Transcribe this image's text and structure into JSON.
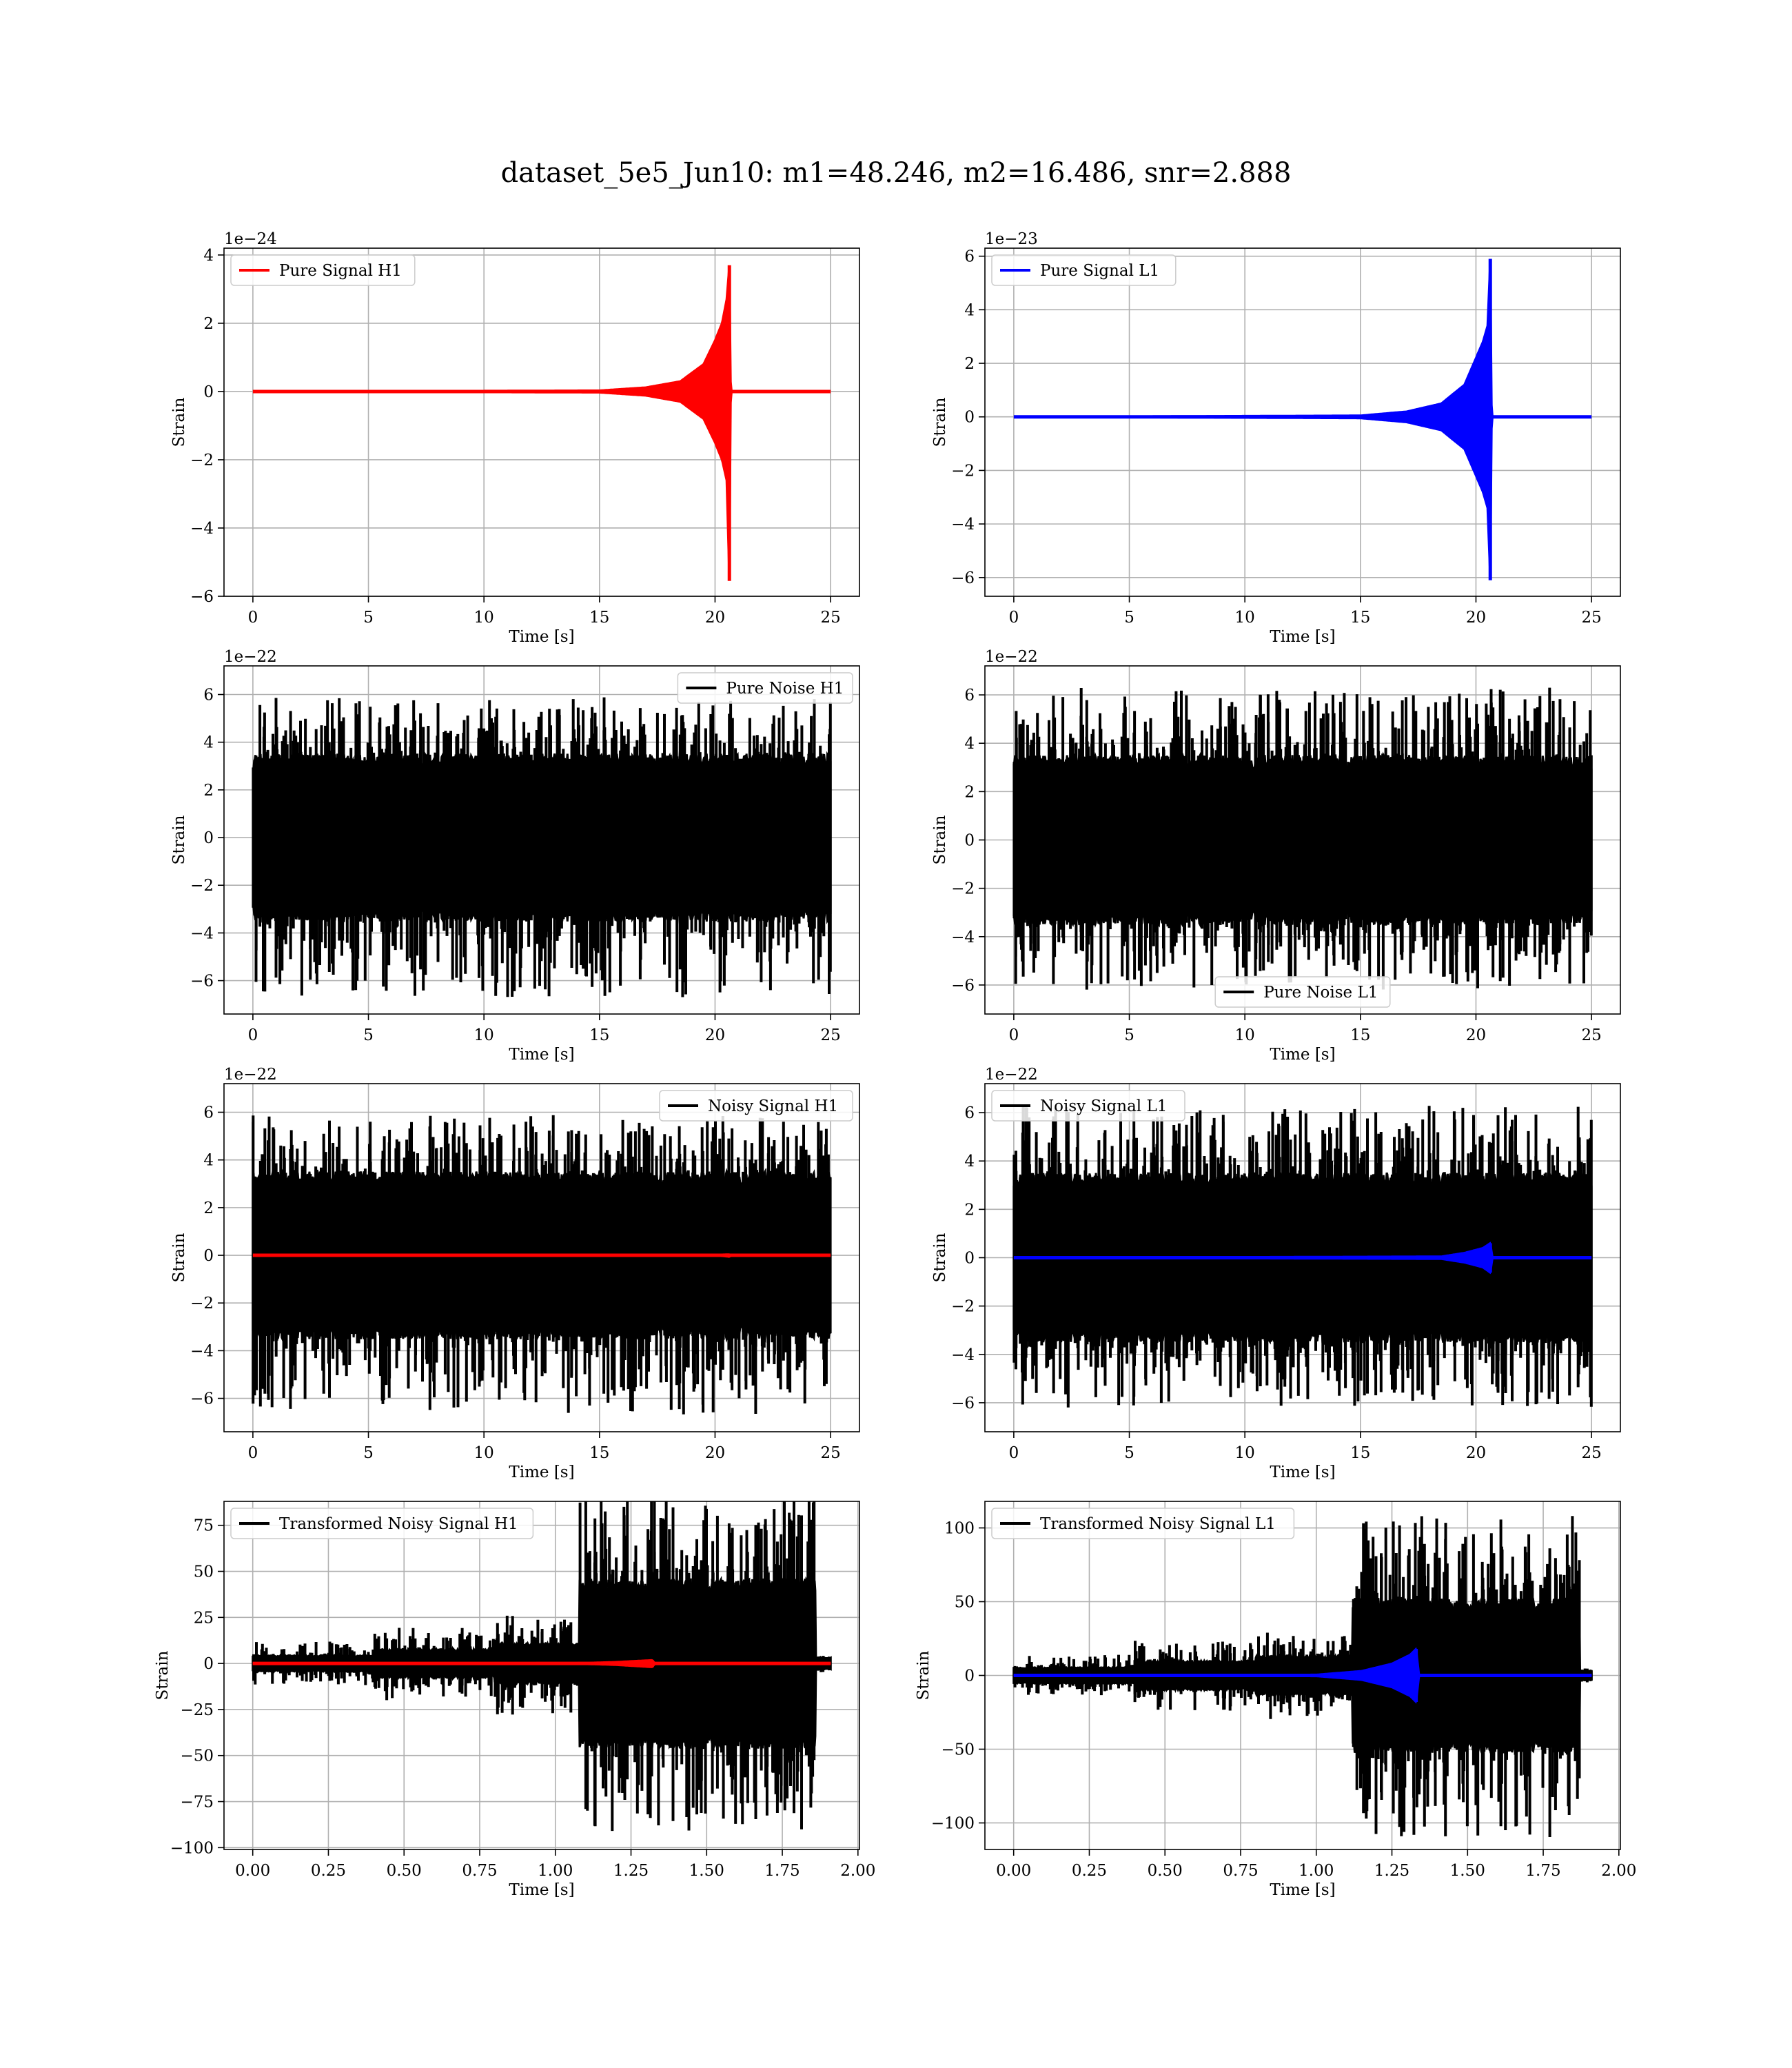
{
  "figure": {
    "title": "dataset_5e5_Jun10: m1=48.246, m2=16.486, snr=2.888"
  },
  "chart_data": [
    {
      "type": "line",
      "id": "pure-signal-h1",
      "title": "",
      "xlabel": "Time [s]",
      "ylabel": "Strain",
      "xlim": [
        -1.25,
        26.25
      ],
      "ylim": [
        -6,
        4.2
      ],
      "offset_text": "1e−24",
      "xticks": [
        0,
        5,
        10,
        15,
        20,
        25
      ],
      "yticks": [
        -6,
        -4,
        -2,
        0,
        2,
        4
      ],
      "xtick_labels": [
        "0",
        "5",
        "10",
        "15",
        "20",
        "25"
      ],
      "ytick_labels": [
        "−6",
        "−4",
        "−2",
        "0",
        "2",
        "4"
      ],
      "legend": {
        "position": "upper left",
        "entries": [
          {
            "label": "Pure Signal H1",
            "color": "#ff0000"
          }
        ]
      },
      "grid": true,
      "series": [
        {
          "name": "Pure Signal H1",
          "kind": "chirp",
          "color": "#ff0000",
          "x": [
            0,
            15,
            17,
            18.5,
            19.5,
            20,
            20.3,
            20.5,
            20.62,
            20.68,
            20.72,
            25
          ],
          "upper": [
            0,
            0.03,
            0.12,
            0.3,
            0.8,
            1.5,
            2.0,
            2.7,
            3.7,
            0.2,
            0,
            0
          ],
          "lower": [
            0,
            -0.03,
            -0.12,
            -0.3,
            -0.8,
            -1.5,
            -2.0,
            -2.6,
            -5.55,
            -0.2,
            0,
            0
          ]
        }
      ]
    },
    {
      "type": "line",
      "id": "pure-signal-l1",
      "title": "",
      "xlabel": "Time [s]",
      "ylabel": "Strain",
      "xlim": [
        -1.25,
        26.25
      ],
      "ylim": [
        -6.7,
        6.3
      ],
      "offset_text": "1e−23",
      "xticks": [
        0,
        5,
        10,
        15,
        20,
        25
      ],
      "yticks": [
        -6,
        -4,
        -2,
        0,
        2,
        4,
        6
      ],
      "xtick_labels": [
        "0",
        "5",
        "10",
        "15",
        "20",
        "25"
      ],
      "ytick_labels": [
        "−6",
        "−4",
        "−2",
        "0",
        "2",
        "4",
        "6"
      ],
      "legend": {
        "position": "upper left",
        "entries": [
          {
            "label": "Pure Signal L1",
            "color": "#0000ff"
          }
        ]
      },
      "grid": true,
      "series": [
        {
          "name": "Pure Signal L1",
          "kind": "chirp",
          "color": "#0000ff",
          "x": [
            0,
            15,
            17,
            18.5,
            19.5,
            20,
            20.3,
            20.5,
            20.62,
            20.68,
            20.72,
            25
          ],
          "upper": [
            0,
            0.05,
            0.2,
            0.5,
            1.2,
            2.2,
            2.8,
            3.4,
            5.9,
            0.3,
            0,
            0
          ],
          "lower": [
            0,
            -0.05,
            -0.2,
            -0.5,
            -1.2,
            -2.2,
            -2.8,
            -3.4,
            -6.1,
            -0.3,
            0,
            0
          ]
        }
      ]
    },
    {
      "type": "line",
      "id": "pure-noise-h1",
      "title": "",
      "xlabel": "Time [s]",
      "ylabel": "Strain",
      "xlim": [
        -1.25,
        26.25
      ],
      "ylim": [
        -7.4,
        7.2
      ],
      "offset_text": "1e−22",
      "xticks": [
        0,
        5,
        10,
        15,
        20,
        25
      ],
      "yticks": [
        -6,
        -4,
        -2,
        0,
        2,
        4,
        6
      ],
      "xtick_labels": [
        "0",
        "5",
        "10",
        "15",
        "20",
        "25"
      ],
      "ytick_labels": [
        "−6",
        "−4",
        "−2",
        "0",
        "2",
        "4",
        "6"
      ],
      "legend": {
        "position": "upper right",
        "entries": [
          {
            "label": "Pure Noise H1",
            "color": "#000000"
          }
        ]
      },
      "grid": true,
      "series": [
        {
          "name": "Pure Noise H1",
          "kind": "noise",
          "color": "#000000",
          "x_range": [
            0,
            25
          ],
          "core": 3.2,
          "peak_max": 5.9,
          "peak_min": -6.7
        }
      ]
    },
    {
      "type": "line",
      "id": "pure-noise-l1",
      "title": "",
      "xlabel": "Time [s]",
      "ylabel": "Strain",
      "xlim": [
        -1.25,
        26.25
      ],
      "ylim": [
        -7.2,
        7.2
      ],
      "offset_text": "1e−22",
      "xticks": [
        0,
        5,
        10,
        15,
        20,
        25
      ],
      "yticks": [
        -6,
        -4,
        -2,
        0,
        2,
        4,
        6
      ],
      "xtick_labels": [
        "0",
        "5",
        "10",
        "15",
        "20",
        "25"
      ],
      "ytick_labels": [
        "−6",
        "−4",
        "−2",
        "0",
        "2",
        "4",
        "6"
      ],
      "legend": {
        "position": "lower center",
        "entries": [
          {
            "label": "Pure Noise L1",
            "color": "#000000"
          }
        ]
      },
      "grid": true,
      "series": [
        {
          "name": "Pure Noise L1",
          "kind": "noise",
          "color": "#000000",
          "x_range": [
            0,
            25
          ],
          "core": 3.2,
          "peak_max": 6.3,
          "peak_min": -6.2
        }
      ]
    },
    {
      "type": "line",
      "id": "noisy-signal-h1",
      "title": "",
      "xlabel": "Time [s]",
      "ylabel": "Strain",
      "xlim": [
        -1.25,
        26.25
      ],
      "ylim": [
        -7.4,
        7.2
      ],
      "offset_text": "1e−22",
      "xticks": [
        0,
        5,
        10,
        15,
        20,
        25
      ],
      "yticks": [
        -6,
        -4,
        -2,
        0,
        2,
        4,
        6
      ],
      "xtick_labels": [
        "0",
        "5",
        "10",
        "15",
        "20",
        "25"
      ],
      "ytick_labels": [
        "−6",
        "−4",
        "−2",
        "0",
        "2",
        "4",
        "6"
      ],
      "legend": {
        "position": "upper right",
        "entries": [
          {
            "label": "Noisy Signal H1",
            "color": "#000000"
          }
        ]
      },
      "grid": true,
      "series": [
        {
          "name": "Noisy Signal H1",
          "kind": "noise",
          "color": "#000000",
          "x_range": [
            0,
            25
          ],
          "core": 3.2,
          "peak_max": 5.9,
          "peak_min": -6.7
        },
        {
          "kind": "chirp",
          "color": "#ff0000",
          "x": [
            0,
            19.5,
            20.3,
            20.62,
            20.72,
            25
          ],
          "upper": [
            0,
            0.01,
            0.03,
            0.04,
            0,
            0
          ],
          "lower": [
            0,
            -0.01,
            -0.03,
            -0.06,
            0,
            0
          ]
        }
      ]
    },
    {
      "type": "line",
      "id": "noisy-signal-l1",
      "title": "",
      "xlabel": "Time [s]",
      "ylabel": "Strain",
      "xlim": [
        -1.25,
        26.25
      ],
      "ylim": [
        -7.2,
        7.2
      ],
      "offset_text": "1e−22",
      "xticks": [
        0,
        5,
        10,
        15,
        20,
        25
      ],
      "yticks": [
        -6,
        -4,
        -2,
        0,
        2,
        4,
        6
      ],
      "xtick_labels": [
        "0",
        "5",
        "10",
        "15",
        "20",
        "25"
      ],
      "ytick_labels": [
        "−6",
        "−4",
        "−2",
        "0",
        "2",
        "4",
        "6"
      ],
      "legend": {
        "position": "upper left",
        "entries": [
          {
            "label": "Noisy Signal L1",
            "color": "#000000"
          }
        ]
      },
      "grid": true,
      "series": [
        {
          "name": "Noisy Signal L1",
          "kind": "noise",
          "color": "#000000",
          "x_range": [
            0,
            25
          ],
          "core": 3.2,
          "peak_max": 6.3,
          "peak_min": -6.2
        },
        {
          "kind": "chirp",
          "color": "#0000ff",
          "x": [
            0,
            18.5,
            19.5,
            20.3,
            20.62,
            20.72,
            25
          ],
          "upper": [
            0,
            0.05,
            0.2,
            0.4,
            0.6,
            0,
            0
          ],
          "lower": [
            0,
            -0.05,
            -0.2,
            -0.4,
            -0.62,
            0,
            0
          ]
        }
      ]
    },
    {
      "type": "line",
      "id": "transformed-noisy-signal-h1",
      "title": "",
      "xlabel": "Time [s]",
      "ylabel": "Strain",
      "xlim": [
        -0.095,
        2.005
      ],
      "ylim": [
        -101,
        88
      ],
      "offset_text": "",
      "xticks": [
        0,
        0.25,
        0.5,
        0.75,
        1.0,
        1.25,
        1.5,
        1.75,
        2.0
      ],
      "yticks": [
        -100,
        -75,
        -50,
        -25,
        0,
        25,
        50,
        75
      ],
      "xtick_labels": [
        "0.00",
        "0.25",
        "0.50",
        "0.75",
        "1.00",
        "1.25",
        "1.50",
        "1.75",
        "2.00"
      ],
      "ytick_labels": [
        "−100",
        "−75",
        "−50",
        "−25",
        "0",
        "25",
        "50",
        "75"
      ],
      "legend": {
        "position": "upper left",
        "entries": [
          {
            "label": "Transformed Noisy Signal H1",
            "color": "#000000"
          }
        ]
      },
      "grid": true,
      "series": [
        {
          "name": "Transformed Noisy Signal H1",
          "kind": "piecewise-noise",
          "color": "#000000",
          "x_range": [
            0,
            1.91
          ],
          "segments": [
            {
              "x0": 0.0,
              "x1": 0.4,
              "core": 4,
              "peak": 12
            },
            {
              "x0": 0.4,
              "x1": 0.8,
              "core": 7,
              "peak": 20
            },
            {
              "x0": 0.8,
              "x1": 1.08,
              "core": 10,
              "peak": 28
            },
            {
              "x0": 1.08,
              "x1": 1.86,
              "core": 42,
              "peak": 92
            },
            {
              "x0": 1.86,
              "x1": 1.91,
              "core": 3,
              "peak": 5
            }
          ]
        },
        {
          "kind": "chirp",
          "color": "#ff0000",
          "x": [
            0,
            1.1,
            1.2,
            1.32,
            1.33,
            1.91
          ],
          "upper": [
            0,
            0.3,
            0.8,
            1.8,
            0,
            0
          ],
          "lower": [
            0,
            -0.3,
            -0.8,
            -2,
            0,
            0
          ]
        }
      ]
    },
    {
      "type": "line",
      "id": "transformed-noisy-signal-l1",
      "title": "",
      "xlabel": "Time [s]",
      "ylabel": "Strain",
      "xlim": [
        -0.095,
        2.005
      ],
      "ylim": [
        -118,
        118
      ],
      "offset_text": "",
      "xticks": [
        0,
        0.25,
        0.5,
        0.75,
        1.0,
        1.25,
        1.5,
        1.75,
        2.0
      ],
      "yticks": [
        -100,
        -50,
        0,
        50,
        100
      ],
      "xtick_labels": [
        "0.00",
        "0.25",
        "0.50",
        "0.75",
        "1.00",
        "1.25",
        "1.50",
        "1.75",
        "2.00"
      ],
      "ytick_labels": [
        "−100",
        "−50",
        "0",
        "50",
        "100"
      ],
      "legend": {
        "position": "upper left",
        "entries": [
          {
            "label": "Transformed Noisy Signal L1",
            "color": "#000000"
          }
        ]
      },
      "grid": true,
      "series": [
        {
          "name": "Transformed Noisy Signal L1",
          "kind": "piecewise-noise",
          "color": "#000000",
          "x_range": [
            0,
            1.91
          ],
          "segments": [
            {
              "x0": 0.0,
              "x1": 0.4,
              "core": 5,
              "peak": 14
            },
            {
              "x0": 0.4,
              "x1": 0.8,
              "core": 9,
              "peak": 24
            },
            {
              "x0": 0.8,
              "x1": 1.12,
              "core": 12,
              "peak": 30
            },
            {
              "x0": 1.12,
              "x1": 1.87,
              "core": 48,
              "peak": 110
            },
            {
              "x0": 1.87,
              "x1": 1.91,
              "core": 3,
              "peak": 6
            }
          ]
        },
        {
          "kind": "chirp",
          "color": "#0000ff",
          "x": [
            0,
            1.0,
            1.15,
            1.25,
            1.31,
            1.33,
            1.34,
            1.91
          ],
          "upper": [
            0,
            0.5,
            3,
            8,
            14,
            18,
            0,
            0
          ],
          "lower": [
            0,
            -0.5,
            -3,
            -8,
            -14,
            -18,
            0,
            0
          ]
        }
      ]
    }
  ]
}
